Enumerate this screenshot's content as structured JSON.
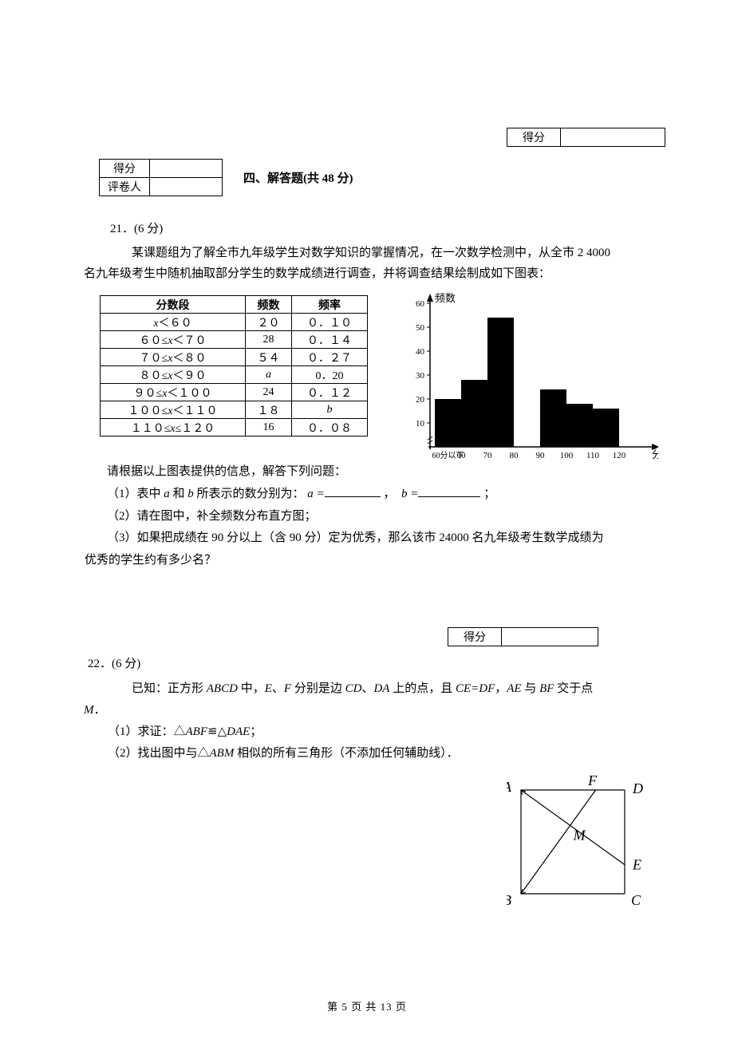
{
  "colors": {
    "text": "#000000",
    "background": "#ffffff",
    "table_border": "#000000",
    "bar_fill": "#000000",
    "axis": "#000000"
  },
  "score_top": {
    "label": "得分"
  },
  "score_left": {
    "row1": "得分",
    "row2": "评卷人"
  },
  "section_title": "四、解答题(共 48 分)",
  "q21": {
    "number": "21．(6 分)",
    "intro_1": "某课题组为了解全市九年级学生对数学知识的掌握情况，在一次数学检测中，从全市 2 4000",
    "intro_2": "名九年级考生中随机抽取部分学生的数学成绩进行调查，并将调查结果绘制成如下图表：",
    "after_table_intro": "请根据以上图表提供的信息，解答下列问题：",
    "sub1_prefix": "（1）表中 ",
    "sub1_mid1": " 和 ",
    "sub1_mid2": " 所表示的数分别为：",
    "sub1_a": "a =",
    "sub1_comma": "，",
    "sub1_b": "b =",
    "sub1_semi": "；",
    "sub2": "（2）请在图中，补全频数分布直方图；",
    "sub3_a": "（3）如果把成绩在 90 分以上（含 90 分）定为优秀，那么该市 24000 名九年级考生数学成绩为",
    "sub3_b": "优秀的学生约有多少名？",
    "var_a": "a",
    "var_b": "b"
  },
  "freq_table": {
    "headers": {
      "range": "分数段",
      "freq": "频数",
      "rate": "频率"
    },
    "rows": [
      {
        "range_html": "<span class='italic-var'>x</span>＜６０",
        "freq": "２０",
        "rate": "０．１０"
      },
      {
        "range_html": "６０≤<span class='italic-var'>x</span>＜７０",
        "freq": "28",
        "rate": "０．１４"
      },
      {
        "range_html": "７０≤<span class='italic-var'>x</span>＜８０",
        "freq": "５４",
        "rate": "０．２７"
      },
      {
        "range_html": "８０≤<span class='italic-var'>x</span>＜９０",
        "freq_html": "<span class='italic-var'>a</span>",
        "rate": "0．20"
      },
      {
        "range_html": "９０≤<span class='italic-var'>x</span>＜１００",
        "freq": "24",
        "rate": "０．１２"
      },
      {
        "range_html": "１００≤<span class='italic-var'>x</span>＜１１０",
        "freq": "１８",
        "rate_html": "<span class='italic-var'>b</span>"
      },
      {
        "range_html": "１１０≤<span class='italic-var'>x</span>≤１２０",
        "freq": "16",
        "rate": "０．０８"
      }
    ]
  },
  "chart": {
    "type": "histogram",
    "y_label": "频数",
    "x_label": "分数",
    "y_ticks": [
      10,
      20,
      30,
      40,
      50,
      60
    ],
    "x_tick_labels": [
      "60分以下",
      "60",
      "70",
      "80",
      "90",
      "100",
      "110",
      "120"
    ],
    "bars": [
      {
        "label": "60分以下",
        "value": 20
      },
      {
        "label": "60",
        "value": 28
      },
      {
        "label": "70",
        "value": 54
      },
      {
        "label": "90",
        "value": 24
      },
      {
        "label": "100",
        "value": 18
      },
      {
        "label": "110",
        "value": 16
      }
    ],
    "bar_gap_at_index": 3,
    "y_max": 60,
    "bar_color": "#000000",
    "axis_color": "#000000",
    "background_color": "#ffffff",
    "tick_fontsize": 11,
    "label_fontsize": 13
  },
  "score_22": {
    "label": "得分"
  },
  "q22": {
    "number": "22．(6 分)",
    "line1_a": "已知：正方形 ",
    "line1_abcd": "ABCD",
    "line1_b": " 中，",
    "line1_e": "E",
    "line1_c": "、",
    "line1_f": "F",
    "line1_d": " 分别是边 ",
    "line1_cd": "CD",
    "line1_e2": "、",
    "line1_da": "DA",
    "line1_f2": " 上的点，且 ",
    "line1_ce": "CE=DF",
    "line1_g": "，",
    "line1_ae": "AE",
    "line1_h": " 与 ",
    "line1_bf": "BF",
    "line1_i": " 交于点",
    "line2_m": "M",
    "line2_dot": "．",
    "sub1_a": "（1）求证：△",
    "sub1_abf": "ABF",
    "sub1_cong": "≌",
    "sub1_tri": "△",
    "sub1_dae": "DAE",
    "sub1_semi": "；",
    "sub2_a": "（2）找出图中与△",
    "sub2_abm": "ABM",
    "sub2_b": " 相似的所有三角形（不添加任何辅助线）．"
  },
  "geometry": {
    "labels": {
      "A": "A",
      "B": "B",
      "C": "C",
      "D": "D",
      "E": "E",
      "F": "F",
      "M": "M"
    },
    "label_fontsize": 18,
    "line_color": "#000000",
    "line_width": 1.2,
    "square_side": 130,
    "F_ratio_on_AD": 0.72,
    "E_ratio_on_DC": 0.72
  },
  "footer": {
    "text": "第 5 页 共 13 页"
  }
}
